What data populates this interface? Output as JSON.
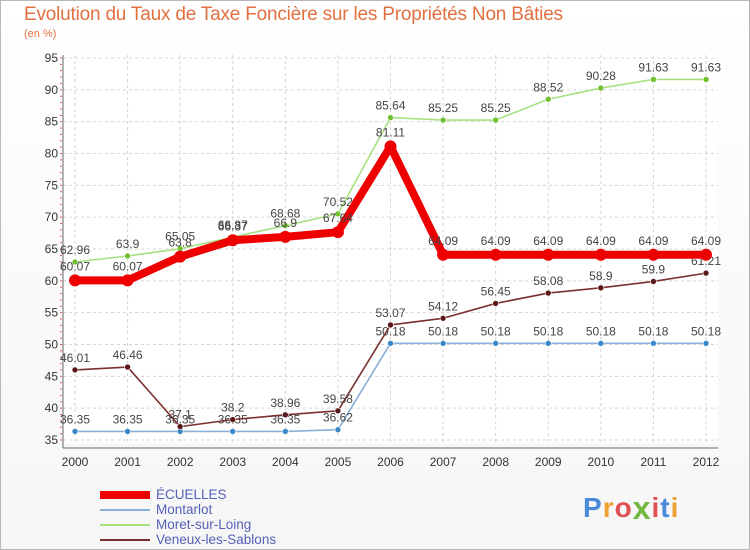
{
  "header": {
    "title": "Evolution du Taux de Taxe Foncière sur les Propriétés Non Bâties",
    "unit": "(en %)"
  },
  "brand": {
    "letters": [
      "P",
      "r",
      "o",
      "x",
      "i",
      "t",
      "i"
    ],
    "colors": [
      "#4a8ad8",
      "#f0a030",
      "#e05050",
      "#70b840",
      "#e05050",
      "#4a8ad8",
      "#f0a030"
    ]
  },
  "chart_data": {
    "type": "line",
    "title": "Evolution du Taux de Taxe Foncière sur les Propriétés Non Bâties",
    "ylabel": "(en %)",
    "xlabel": "",
    "ylim": [
      35,
      95
    ],
    "yticks": [
      35,
      40,
      45,
      50,
      55,
      60,
      65,
      70,
      75,
      80,
      85,
      90,
      95
    ],
    "grid": true,
    "legend_position": "bottom-left",
    "categories": [
      "2000",
      "2001",
      "2002",
      "2003",
      "2004",
      "2005",
      "2006",
      "2007",
      "2008",
      "2009",
      "2010",
      "2011",
      "2012"
    ],
    "series": [
      {
        "name": "ÉCUELLES",
        "color": "#ee0000",
        "marker": "#ee0000",
        "emphasis": true,
        "values": [
          60.07,
          60.07,
          63.8,
          66.37,
          66.9,
          67.64,
          81.11,
          64.09,
          64.09,
          64.09,
          64.09,
          64.09,
          64.09
        ],
        "labels": [
          "60.07",
          "60.07",
          "63.8",
          "66.37",
          "66.9",
          "67.64",
          "81.11",
          "64.09",
          "64.09",
          "64.09",
          "64.09",
          "64.09",
          "64.09"
        ]
      },
      {
        "name": "Montarlot",
        "color": "#88b0d8",
        "marker": "#3a88c8",
        "emphasis": false,
        "values": [
          36.35,
          36.35,
          36.35,
          36.35,
          36.35,
          36.62,
          50.18,
          50.18,
          50.18,
          50.18,
          50.18,
          50.18,
          50.18
        ],
        "labels": [
          "36.35",
          "36.35",
          "36.35",
          "36.35",
          "36.35",
          "36.62",
          "50.18",
          "50.18",
          "50.18",
          "50.18",
          "50.18",
          "50.18",
          "50.18"
        ]
      },
      {
        "name": "Moret-sur-Loing",
        "color": "#a8e080",
        "marker": "#70c030",
        "emphasis": false,
        "values": [
          62.96,
          63.9,
          65.05,
          66.87,
          68.68,
          70.52,
          85.64,
          85.25,
          85.25,
          88.52,
          90.28,
          91.63,
          91.63
        ],
        "labels": [
          "62.96",
          "63.9",
          "65.05",
          "66.87",
          "68.68",
          "70.52",
          "85.64",
          "85.25",
          "85.25",
          "88.52",
          "90.28",
          "91.63",
          "91.63"
        ]
      },
      {
        "name": "Veneux-les-Sablons",
        "color": "#7a3030",
        "marker": "#5a1818",
        "emphasis": false,
        "values": [
          46.01,
          46.46,
          37.1,
          38.2,
          38.96,
          39.58,
          53.07,
          54.12,
          56.45,
          58.08,
          58.9,
          59.9,
          61.21
        ],
        "labels": [
          "46.01",
          "46.46",
          "37.1",
          "38.2",
          "38.96",
          "39.58",
          "53.07",
          "54.12",
          "56.45",
          "58.08",
          "58.9",
          "59.9",
          "61.21"
        ]
      }
    ]
  }
}
